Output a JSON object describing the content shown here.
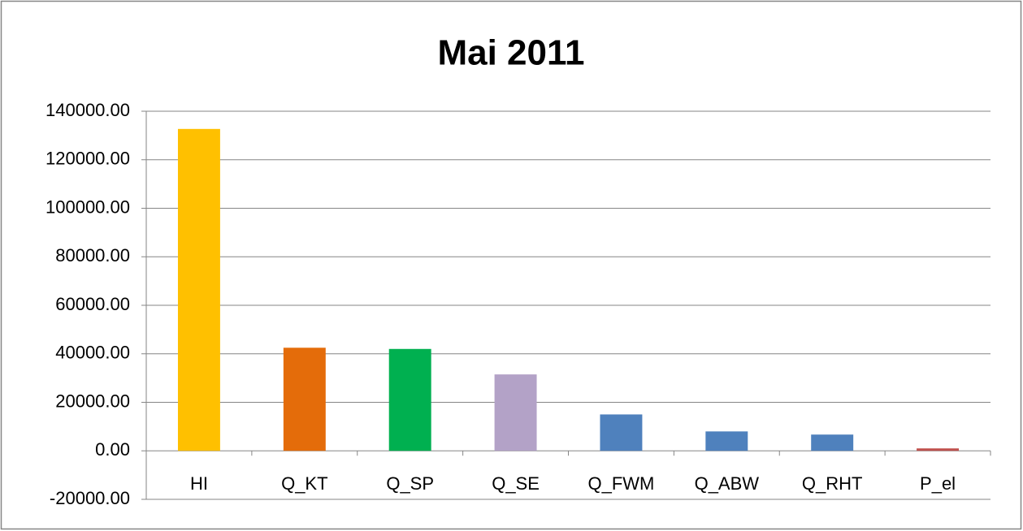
{
  "chart_data": {
    "type": "bar",
    "title": "Mai 2011",
    "categories": [
      "HI",
      "Q_KT",
      "Q_SP",
      "Q_SE",
      "Q_FWM",
      "Q_ABW",
      "Q_RHT",
      "P_el"
    ],
    "values": [
      132700,
      42500,
      42000,
      31500,
      15000,
      8000,
      6700,
      1000
    ],
    "colors": [
      "#ffc000",
      "#e46c0a",
      "#00b050",
      "#b3a2c7",
      "#4f81bd",
      "#4f81bd",
      "#4f81bd",
      "#c0504d"
    ],
    "ylim": [
      -20000,
      140000
    ],
    "yticks": [
      {
        "value": -20000,
        "label": "-20000.00"
      },
      {
        "value": 0,
        "label": "0.00"
      },
      {
        "value": 20000,
        "label": "20000.00"
      },
      {
        "value": 40000,
        "label": "40000.00"
      },
      {
        "value": 60000,
        "label": "60000.00"
      },
      {
        "value": 80000,
        "label": "80000.00"
      },
      {
        "value": 100000,
        "label": "100000.00"
      },
      {
        "value": 120000,
        "label": "120000.00"
      },
      {
        "value": 140000,
        "label": "140000.00"
      }
    ],
    "grid": true
  }
}
